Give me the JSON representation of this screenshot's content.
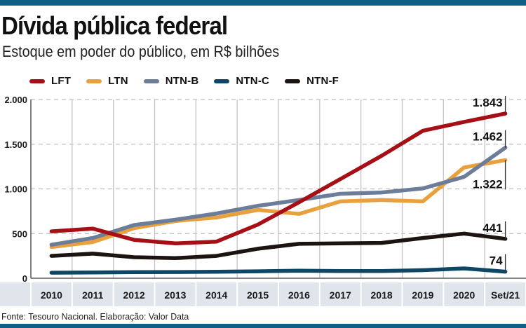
{
  "header": {
    "title": "Dívida pública federal",
    "subtitle": "Estoque em poder do público, em R$ bilhões"
  },
  "footer": {
    "source": "Fonte: Tesouro Nacional. Elaboração: Valor Data"
  },
  "colors": {
    "brand_bar": "#0f5f87",
    "axis_band": "#dfe5eb",
    "grid": "#bdbdbd"
  },
  "chart_data": {
    "type": "line",
    "title": "Dívida pública federal",
    "subtitle": "Estoque em poder do público, em R$ bilhões",
    "xlabel": "",
    "ylabel": "",
    "categories": [
      "2010",
      "2011",
      "2012",
      "2013",
      "2014",
      "2015",
      "2016",
      "2017",
      "2018",
      "2019",
      "2020",
      "Set/21"
    ],
    "ylim": [
      0,
      2000
    ],
    "yticks": [
      0,
      500,
      1000,
      1500,
      2000
    ],
    "ytick_labels": [
      "0",
      "500",
      "1.000",
      "1.500",
      "2.000"
    ],
    "grid": true,
    "legend_position": "top-left",
    "series": [
      {
        "name": "LFT",
        "color": "#a50f15",
        "values": [
          525,
          555,
          430,
          390,
          410,
          600,
          850,
          1110,
          1370,
          1650,
          1750,
          1843
        ]
      },
      {
        "name": "LTN",
        "color": "#e8a13c",
        "values": [
          350,
          405,
          560,
          640,
          680,
          765,
          720,
          860,
          875,
          860,
          1240,
          1322
        ]
      },
      {
        "name": "NTN-B",
        "color": "#6b7d99",
        "values": [
          375,
          450,
          595,
          655,
          725,
          810,
          875,
          945,
          960,
          1005,
          1135,
          1462
        ]
      },
      {
        "name": "NTN-C",
        "color": "#0e4766",
        "values": [
          62,
          65,
          68,
          70,
          72,
          78,
          85,
          80,
          80,
          90,
          110,
          74
        ]
      },
      {
        "name": "NTN-F",
        "color": "#1c1410",
        "values": [
          250,
          275,
          235,
          225,
          250,
          330,
          385,
          390,
          395,
          450,
          500,
          441
        ]
      }
    ],
    "end_labels": [
      {
        "series": "LFT",
        "text": "1.843"
      },
      {
        "series": "NTN-B",
        "text": "1.462"
      },
      {
        "series": "LTN",
        "text": "1.322"
      },
      {
        "series": "NTN-F",
        "text": "441"
      },
      {
        "series": "NTN-C",
        "text": "74"
      }
    ]
  }
}
